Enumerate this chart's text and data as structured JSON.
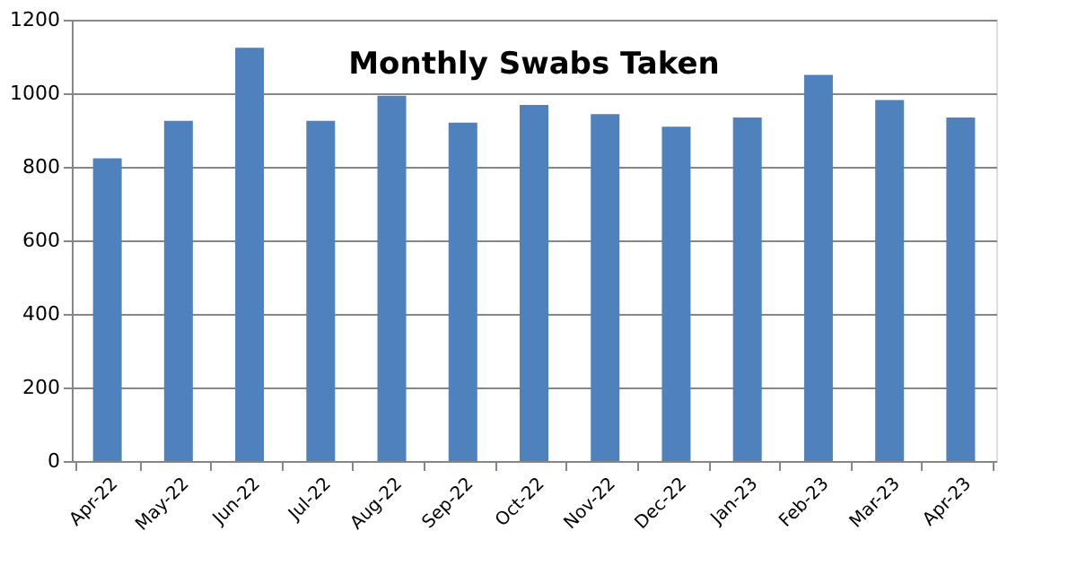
{
  "chart_data": {
    "type": "bar",
    "title": "Monthly Swabs Taken",
    "categories": [
      "Apr-22",
      "May-22",
      "Jun-22",
      "Jul-22",
      "Aug-22",
      "Sep-22",
      "Oct-22",
      "Nov-22",
      "Dec-22",
      "Jan-23",
      "Feb-23",
      "Mar-23",
      "Apr-23"
    ],
    "values": [
      823,
      925,
      1124,
      925,
      993,
      920,
      968,
      943,
      909,
      934,
      1050,
      982,
      934
    ],
    "color": "#4f81bd",
    "ylim": [
      0,
      1200
    ],
    "yticks": [
      0,
      200,
      400,
      600,
      800,
      1000,
      1200
    ],
    "grid": "y"
  }
}
